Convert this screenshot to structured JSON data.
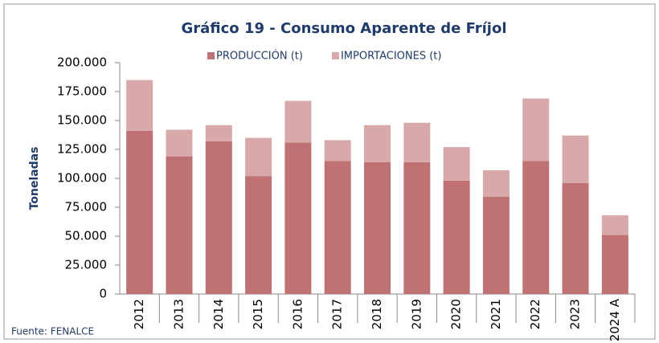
{
  "chart_data": {
    "type": "stacked_bar",
    "title": "Gráfico 19 - Consumo Aparente de Fríjol",
    "y_label": "Toneladas",
    "source": "Fuente: FENALCE",
    "categories": [
      "2012",
      "2013",
      "2014",
      "2015",
      "2016",
      "2017",
      "2018",
      "2019",
      "2020",
      "2021",
      "2022",
      "2023",
      "2024 A"
    ],
    "series": [
      {
        "name": "PRODUCCIÓN (t)",
        "color": "#c07173",
        "values": [
          141000,
          119000,
          132000,
          102000,
          131000,
          115000,
          114000,
          114000,
          98000,
          84000,
          115000,
          96000,
          51000
        ]
      },
      {
        "name": "IMPORTACIONES (t)",
        "color": "#d9a9aa",
        "values": [
          44000,
          23000,
          14000,
          33000,
          36000,
          18000,
          32000,
          34000,
          29000,
          23000,
          54000,
          41000,
          17000
        ]
      }
    ],
    "ylim": [
      0,
      200000
    ],
    "yticks": [
      0,
      {
        "value": 25000,
        "label": "25.000"
      },
      {
        "value": 50000,
        "label": "50.000"
      },
      {
        "value": 75000,
        "label": "75.000"
      },
      {
        "value": 100000,
        "label": "100.000"
      },
      {
        "value": 125000,
        "label": "125.000"
      },
      {
        "value": 150000,
        "label": "150.000"
      },
      {
        "value": 175000,
        "label": "175.000"
      },
      {
        "value": 200000,
        "label": "200.000"
      }
    ],
    "legend": "top"
  }
}
